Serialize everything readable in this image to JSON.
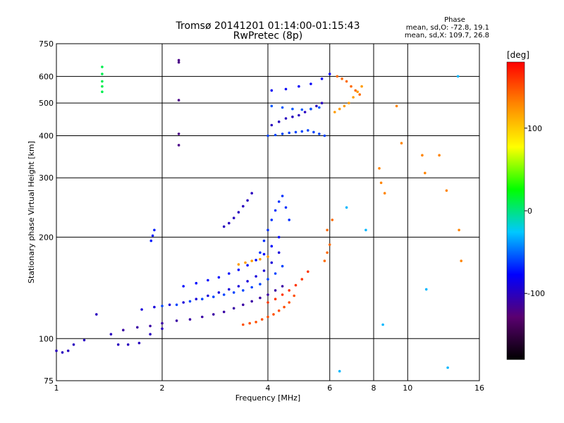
{
  "header": {
    "title": "Tromsø 20141201 01:14:00-01:15:43",
    "subtitle": "RwPretec (8p)",
    "phase_label": "Phase",
    "phase_o": "mean, sd,O: -72.8, 19.1",
    "phase_x": "mean, sd,X: 109.7, 26.8"
  },
  "chart_data": {
    "type": "scatter",
    "xlabel": "Frequency [MHz]",
    "ylabel": "Stationary phase Virtual Height [km]",
    "xscale": "log",
    "yscale": "log",
    "xlim": [
      1,
      16
    ],
    "ylim": [
      75,
      750
    ],
    "xticks": [
      1,
      2,
      4,
      6,
      8,
      10,
      16
    ],
    "xtick_labels": [
      "1",
      "2",
      "4",
      "6",
      "8",
      "10",
      "16"
    ],
    "yticks": [
      75,
      100,
      200,
      300,
      400,
      500,
      600,
      750
    ],
    "ytick_labels": [
      "75",
      "100",
      "200",
      "300",
      "400",
      "500",
      "600",
      "750"
    ],
    "grid": true,
    "colorbar": {
      "label": "[deg]",
      "range": [
        -180,
        180
      ],
      "ticks": [
        100,
        0,
        -100
      ],
      "tick_labels": [
        "100",
        "0",
        "-100"
      ],
      "colormap": "rainbow",
      "colors": [
        "#000000",
        "#5a0070",
        "#0000ff",
        "#00c8ff",
        "#00ff00",
        "#ffff00",
        "#ff8800",
        "#ff0000"
      ]
    },
    "series": [
      {
        "x": [
          1.0,
          1.04,
          1.08,
          1.12,
          1.2,
          1.3,
          1.43,
          1.5,
          1.6,
          1.72,
          1.85,
          2.0
        ],
        "y": [
          92,
          91,
          92,
          96,
          99,
          118,
          103,
          96,
          96,
          97,
          103,
          107
        ],
        "phase": -100
      },
      {
        "x": [
          1.55,
          1.7,
          1.85,
          2.0,
          2.2,
          2.4,
          2.6,
          2.8,
          3.0,
          3.2,
          3.4,
          3.6,
          3.8,
          4.0,
          4.2,
          4.4
        ],
        "y": [
          106,
          108,
          109,
          111,
          113,
          114,
          116,
          118,
          120,
          123,
          126,
          129,
          132,
          135,
          139,
          143
        ],
        "phase": -110
      },
      {
        "x": [
          2.0,
          2.2,
          2.4,
          2.6,
          2.8,
          3.0,
          3.2,
          3.4,
          3.6,
          3.8,
          4.0,
          4.2,
          4.4
        ],
        "y": [
          125,
          126,
          129,
          131,
          133,
          135,
          137,
          139,
          142,
          145,
          150,
          156,
          164
        ],
        "phase": -60
      },
      {
        "x": [
          1.75,
          1.9,
          2.1,
          2.3,
          2.5,
          2.7,
          2.9,
          3.1,
          3.3,
          3.5,
          3.7,
          3.9,
          4.1,
          4.3
        ],
        "y": [
          122,
          124,
          126,
          128,
          131,
          134,
          137,
          140,
          143,
          148,
          153,
          159,
          168,
          180
        ],
        "phase": -90
      },
      {
        "x": [
          2.3,
          2.5,
          2.7,
          2.9,
          3.1,
          3.3,
          3.5,
          3.7,
          3.9,
          4.1,
          4.3
        ],
        "y": [
          143,
          146,
          149,
          152,
          156,
          160,
          165,
          171,
          178,
          188,
          200
        ],
        "phase": -75
      },
      {
        "x": [
          3.8,
          3.9,
          4.0,
          4.1,
          4.2,
          4.3,
          4.4,
          4.5,
          4.6
        ],
        "y": [
          180,
          195,
          210,
          225,
          240,
          255,
          265,
          245,
          225
        ],
        "phase": -65
      },
      {
        "x": [
          3.0,
          3.1,
          3.2,
          3.3,
          3.4,
          3.5,
          3.6
        ],
        "y": [
          215,
          220,
          228,
          237,
          247,
          257,
          270
        ],
        "phase": -100
      },
      {
        "x": [
          3.3,
          3.45,
          3.6,
          3.8,
          4.0
        ],
        "y": [
          166,
          168,
          170,
          172,
          175
        ],
        "phase": 120
      },
      {
        "x": [
          3.4,
          3.55,
          3.7,
          3.85,
          4.0,
          4.15,
          4.3,
          4.45,
          4.6,
          4.75
        ],
        "y": [
          110,
          111,
          112,
          114,
          116,
          118,
          121,
          124,
          128,
          134
        ],
        "phase": 150
      },
      {
        "x": [
          4.0,
          4.2,
          4.4,
          4.6,
          4.8,
          5.0,
          5.2
        ],
        "y": [
          128,
          131,
          135,
          139,
          144,
          150,
          158
        ],
        "phase": 160
      },
      {
        "x": [
          4.0,
          4.2,
          4.4,
          4.6,
          4.8,
          5.0,
          5.2,
          5.4,
          5.6,
          5.8
        ],
        "y": [
          400,
          402,
          405,
          408,
          410,
          412,
          415,
          410,
          405,
          400
        ],
        "phase": -60
      },
      {
        "x": [
          4.1,
          4.3,
          4.5,
          4.7,
          4.9,
          5.1,
          5.3,
          5.5,
          5.7
        ],
        "y": [
          430,
          440,
          450,
          455,
          460,
          470,
          480,
          490,
          500
        ],
        "phase": -100
      },
      {
        "x": [
          4.1,
          4.4,
          4.7,
          5.0,
          5.3,
          5.6
        ],
        "y": [
          490,
          485,
          480,
          478,
          480,
          485
        ],
        "phase": -55
      },
      {
        "x": [
          4.1,
          4.5,
          4.9,
          5.3,
          5.7,
          6.0
        ],
        "y": [
          545,
          550,
          560,
          570,
          590,
          610
        ],
        "phase": -80
      },
      {
        "x": [
          6.2,
          6.4,
          6.6,
          6.8,
          7.0,
          7.2,
          7.4
        ],
        "y": [
          470,
          480,
          490,
          500,
          520,
          540,
          560
        ],
        "phase": 120
      },
      {
        "x": [
          6.3,
          6.5,
          6.7,
          6.9,
          7.1,
          7.3
        ],
        "y": [
          600,
          590,
          580,
          560,
          545,
          530
        ],
        "phase": 140
      },
      {
        "x": [
          1.35,
          1.35,
          1.35,
          1.35,
          1.35
        ],
        "y": [
          540,
          560,
          580,
          610,
          640
        ],
        "phase": 10
      },
      {
        "x": [
          2.23,
          2.23,
          2.23,
          2.23,
          2.23
        ],
        "y": [
          510,
          405,
          375,
          670,
          660
        ],
        "phase": -120
      },
      {
        "x": [
          1.86,
          1.88,
          1.9
        ],
        "y": [
          195,
          202,
          210
        ],
        "phase": -70
      },
      {
        "x": [
          5.8,
          5.9,
          6.0,
          5.9,
          6.1
        ],
        "y": [
          170,
          180,
          190,
          210,
          225
        ],
        "phase": 140
      },
      {
        "x": [
          8.3,
          8.4,
          8.6,
          9.3,
          9.6,
          11,
          11.2,
          12.3,
          12.9,
          14,
          14.2
        ],
        "y": [
          320,
          290,
          270,
          490,
          380,
          350,
          310,
          350,
          275,
          210,
          170
        ],
        "phase": 130
      },
      {
        "x": [
          6.4,
          6.7,
          7.6,
          8.5,
          11.3,
          13,
          13.9
        ],
        "y": [
          80,
          245,
          210,
          110,
          140,
          82,
          600
        ],
        "phase": -30
      }
    ]
  }
}
